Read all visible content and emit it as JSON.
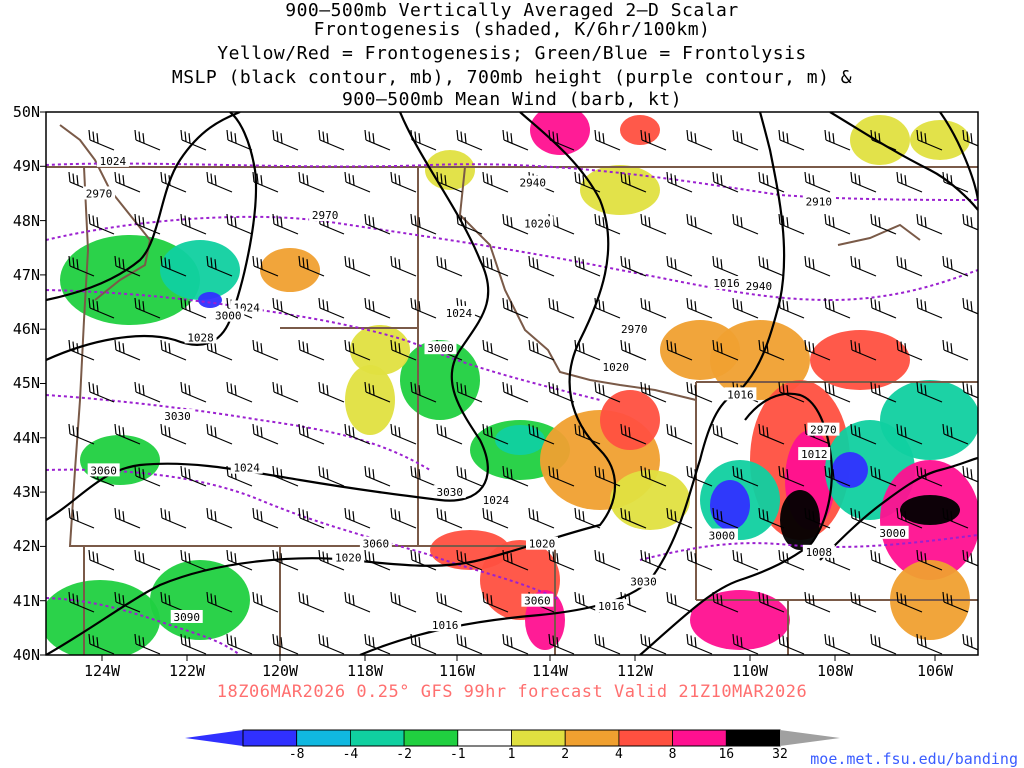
{
  "title_lines": [
    "900–500mb Vertically Averaged 2–D Scalar",
    "Frontogenesis (shaded, K/6hr/100km)",
    "Yellow/Red = Frontogenesis;  Green/Blue = Frontolysis",
    "MSLP (black contour, mb), 700mb height (purple contour, m) &",
    "900–500mb Mean Wind (barb, kt)"
  ],
  "subtitle": "18Z06MAR2026 0.25° GFS 99hr forecast Valid 21Z10MAR2026",
  "url": "moe.met.fsu.edu/banding",
  "lat_labels": [
    "50N",
    "49N",
    "48N",
    "47N",
    "46N",
    "45N",
    "44N",
    "43N",
    "42N",
    "41N",
    "40N"
  ],
  "lon_labels": [
    "124W",
    "122W",
    "120W",
    "118W",
    "116W",
    "114W",
    "112W",
    "110W",
    "108W",
    "106W"
  ],
  "colorbar": {
    "labels": [
      "-8",
      "-4",
      "-2",
      "-1",
      "1",
      "2",
      "4",
      "8",
      "16",
      "32"
    ],
    "colors": [
      "#3030ff",
      "#10b8e0",
      "#10d0a0",
      "#20d040",
      "#ffffff",
      "#e0e040",
      "#f0a030",
      "#ff5040",
      "#ff1090",
      "#000000"
    ],
    "end_low": "#3030ff",
    "end_high": "#a0a0a0"
  },
  "mslp_labels": [
    {
      "text": "1024",
      "lon": -123.8,
      "lat": 49.1
    },
    {
      "text": "1028",
      "lon": -121.9,
      "lat": 45.85
    },
    {
      "text": "1024",
      "lon": -120.9,
      "lat": 46.4
    },
    {
      "text": "1024",
      "lon": -120.9,
      "lat": 43.45
    },
    {
      "text": "1024",
      "lon": -116.3,
      "lat": 46.3
    },
    {
      "text": "1020",
      "lon": -114.6,
      "lat": 47.95
    },
    {
      "text": "1020",
      "lon": -112.9,
      "lat": 45.3
    },
    {
      "text": "1024",
      "lon": -115.5,
      "lat": 42.85
    },
    {
      "text": "1020",
      "lon": -118.7,
      "lat": 41.8
    },
    {
      "text": "1020",
      "lon": -114.5,
      "lat": 42.05
    },
    {
      "text": "1016",
      "lon": -110.5,
      "lat": 46.85
    },
    {
      "text": "1016",
      "lon": -110.2,
      "lat": 44.8
    },
    {
      "text": "1012",
      "lon": -108.6,
      "lat": 43.7
    },
    {
      "text": "1008",
      "lon": -108.5,
      "lat": 41.9
    },
    {
      "text": "1016",
      "lon": -116.6,
      "lat": 40.55
    },
    {
      "text": "1016",
      "lon": -113.0,
      "lat": 40.9
    }
  ],
  "height_labels": [
    {
      "text": "2970",
      "lon": -124.1,
      "lat": 48.5
    },
    {
      "text": "2970",
      "lon": -119.2,
      "lat": 48.1
    },
    {
      "text": "2940",
      "lon": -114.7,
      "lat": 48.7
    },
    {
      "text": "2910",
      "lon": -108.5,
      "lat": 48.35
    },
    {
      "text": "2940",
      "lon": -109.8,
      "lat": 46.8
    },
    {
      "text": "2970",
      "lon": -112.5,
      "lat": 46.0
    },
    {
      "text": "3000",
      "lon": -121.3,
      "lat": 46.25
    },
    {
      "text": "3000",
      "lon": -116.7,
      "lat": 45.65
    },
    {
      "text": "3030",
      "lon": -122.4,
      "lat": 44.4
    },
    {
      "text": "3060",
      "lon": -124.0,
      "lat": 43.4
    },
    {
      "text": "3030",
      "lon": -116.5,
      "lat": 43.0
    },
    {
      "text": "3060",
      "lon": -118.1,
      "lat": 42.05
    },
    {
      "text": "3090",
      "lon": -122.2,
      "lat": 40.7
    },
    {
      "text": "3060",
      "lon": -114.6,
      "lat": 41.0
    },
    {
      "text": "3030",
      "lon": -112.3,
      "lat": 41.35
    },
    {
      "text": "3000",
      "lon": -110.6,
      "lat": 42.2
    },
    {
      "text": "2970",
      "lon": -108.4,
      "lat": 44.15
    },
    {
      "text": "3000",
      "lon": -106.9,
      "lat": 42.25
    }
  ]
}
